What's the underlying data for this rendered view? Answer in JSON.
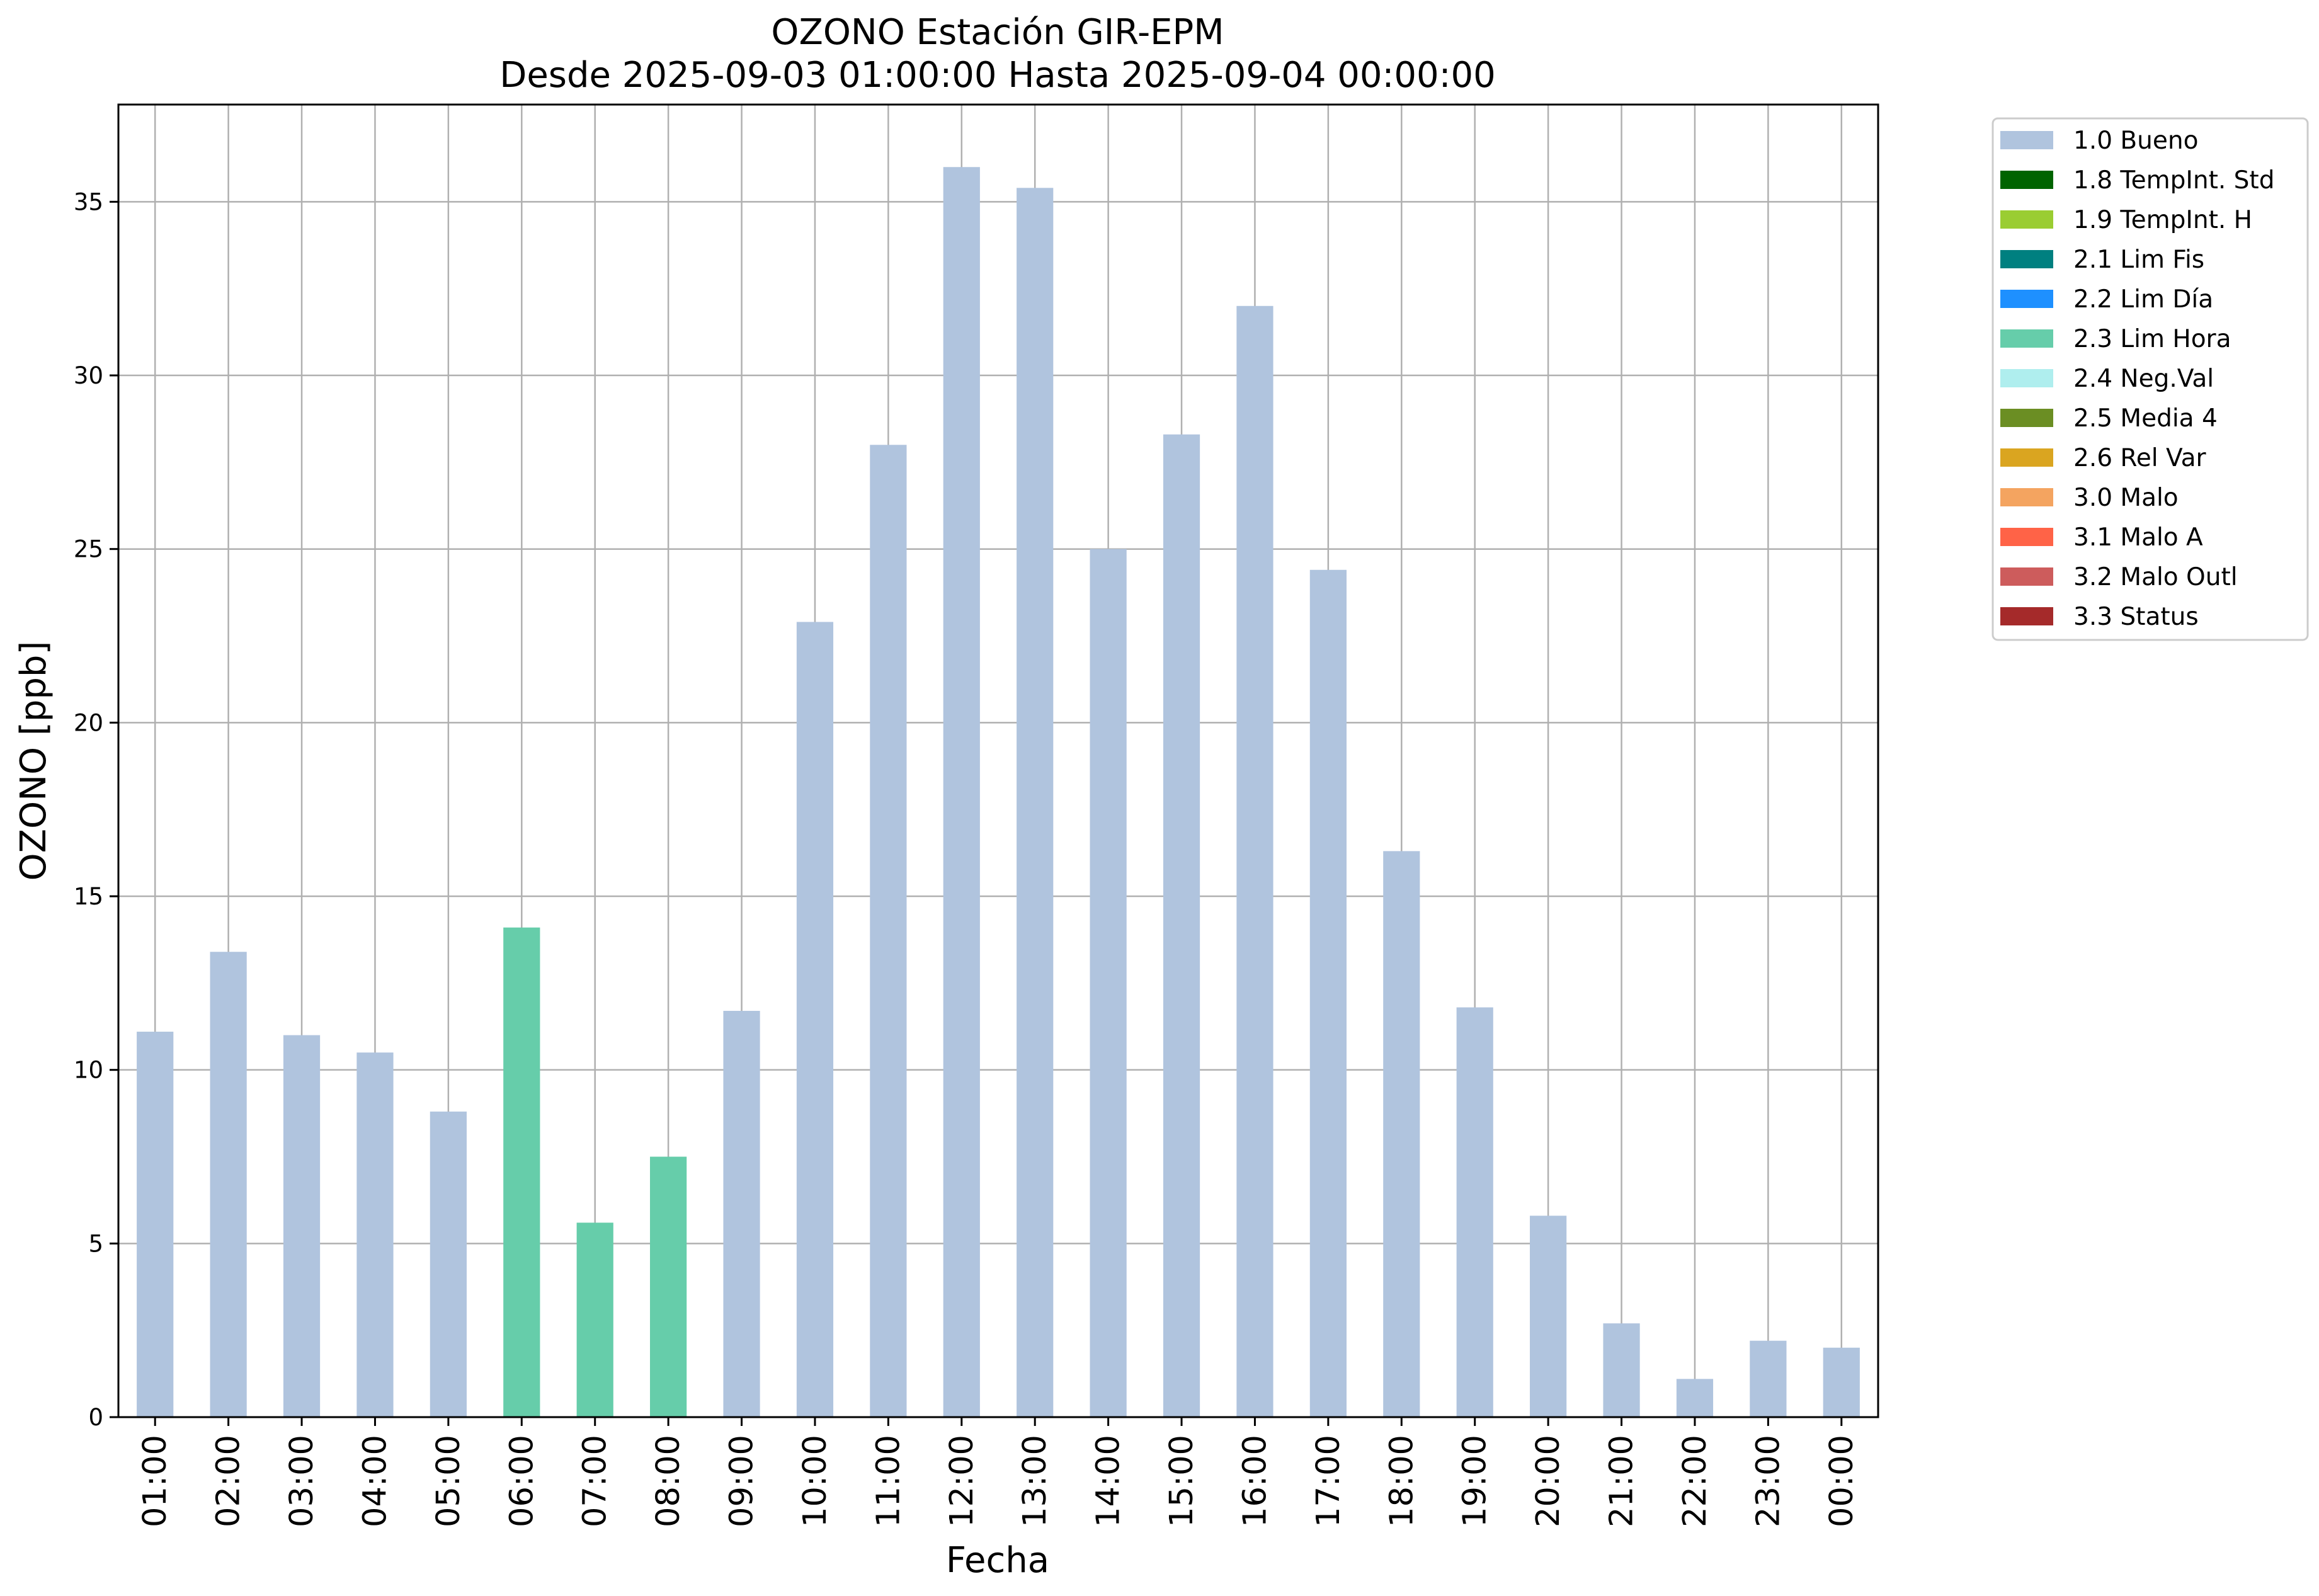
{
  "chart_data": {
    "type": "bar",
    "title": "OZONO Estación GIR-EPM",
    "subtitle": "Desde 2025-09-03 01:00:00 Hasta 2025-09-04 00:00:00",
    "xlabel": "Fecha",
    "ylabel": "OZONO [ppb]",
    "ylim": [
      0,
      37.8
    ],
    "yticks": [
      0,
      5,
      10,
      15,
      20,
      25,
      30,
      35
    ],
    "grid": true,
    "legend_position": "outside-top-right",
    "categories": [
      "01:00",
      "02:00",
      "03:00",
      "04:00",
      "05:00",
      "06:00",
      "07:00",
      "08:00",
      "09:00",
      "10:00",
      "11:00",
      "12:00",
      "13:00",
      "14:00",
      "15:00",
      "16:00",
      "17:00",
      "18:00",
      "19:00",
      "20:00",
      "21:00",
      "22:00",
      "23:00",
      "00:00"
    ],
    "values": [
      11.1,
      13.4,
      11.0,
      10.5,
      8.8,
      14.1,
      5.6,
      7.5,
      11.7,
      22.9,
      28.0,
      36.0,
      35.4,
      25.0,
      28.3,
      32.0,
      24.4,
      16.3,
      11.8,
      5.8,
      2.7,
      1.1,
      2.2,
      2.0
    ],
    "flags": [
      "1.0 Bueno",
      "1.0 Bueno",
      "1.0 Bueno",
      "1.0 Bueno",
      "1.0 Bueno",
      "2.3 Lim Hora",
      "2.3 Lim Hora",
      "2.3 Lim Hora",
      "1.0 Bueno",
      "1.0 Bueno",
      "1.0 Bueno",
      "1.0 Bueno",
      "1.0 Bueno",
      "1.0 Bueno",
      "1.0 Bueno",
      "1.0 Bueno",
      "1.0 Bueno",
      "1.0 Bueno",
      "1.0 Bueno",
      "1.0 Bueno",
      "1.0 Bueno",
      "1.0 Bueno",
      "1.0 Bueno",
      "1.0 Bueno"
    ],
    "legend": [
      {
        "label": "1.0 Bueno",
        "color": "#b0c4de"
      },
      {
        "label": "1.8 TempInt. Std",
        "color": "#006400"
      },
      {
        "label": "1.9 TempInt. H",
        "color": "#9acd32"
      },
      {
        "label": "2.1 Lim Fis",
        "color": "#008080"
      },
      {
        "label": "2.2 Lim Día",
        "color": "#1e90ff"
      },
      {
        "label": "2.3 Lim Hora",
        "color": "#66cdaa"
      },
      {
        "label": "2.4 Neg.Val",
        "color": "#afeeee"
      },
      {
        "label": "2.5 Media 4",
        "color": "#6b8e23"
      },
      {
        "label": "2.6 Rel Var",
        "color": "#daa520"
      },
      {
        "label": "3.0 Malo",
        "color": "#f4a460"
      },
      {
        "label": "3.1 Malo A",
        "color": "#ff6347"
      },
      {
        "label": "3.2 Malo Outl",
        "color": "#cd5c5c"
      },
      {
        "label": "3.3 Status",
        "color": "#a52a2a"
      }
    ]
  }
}
